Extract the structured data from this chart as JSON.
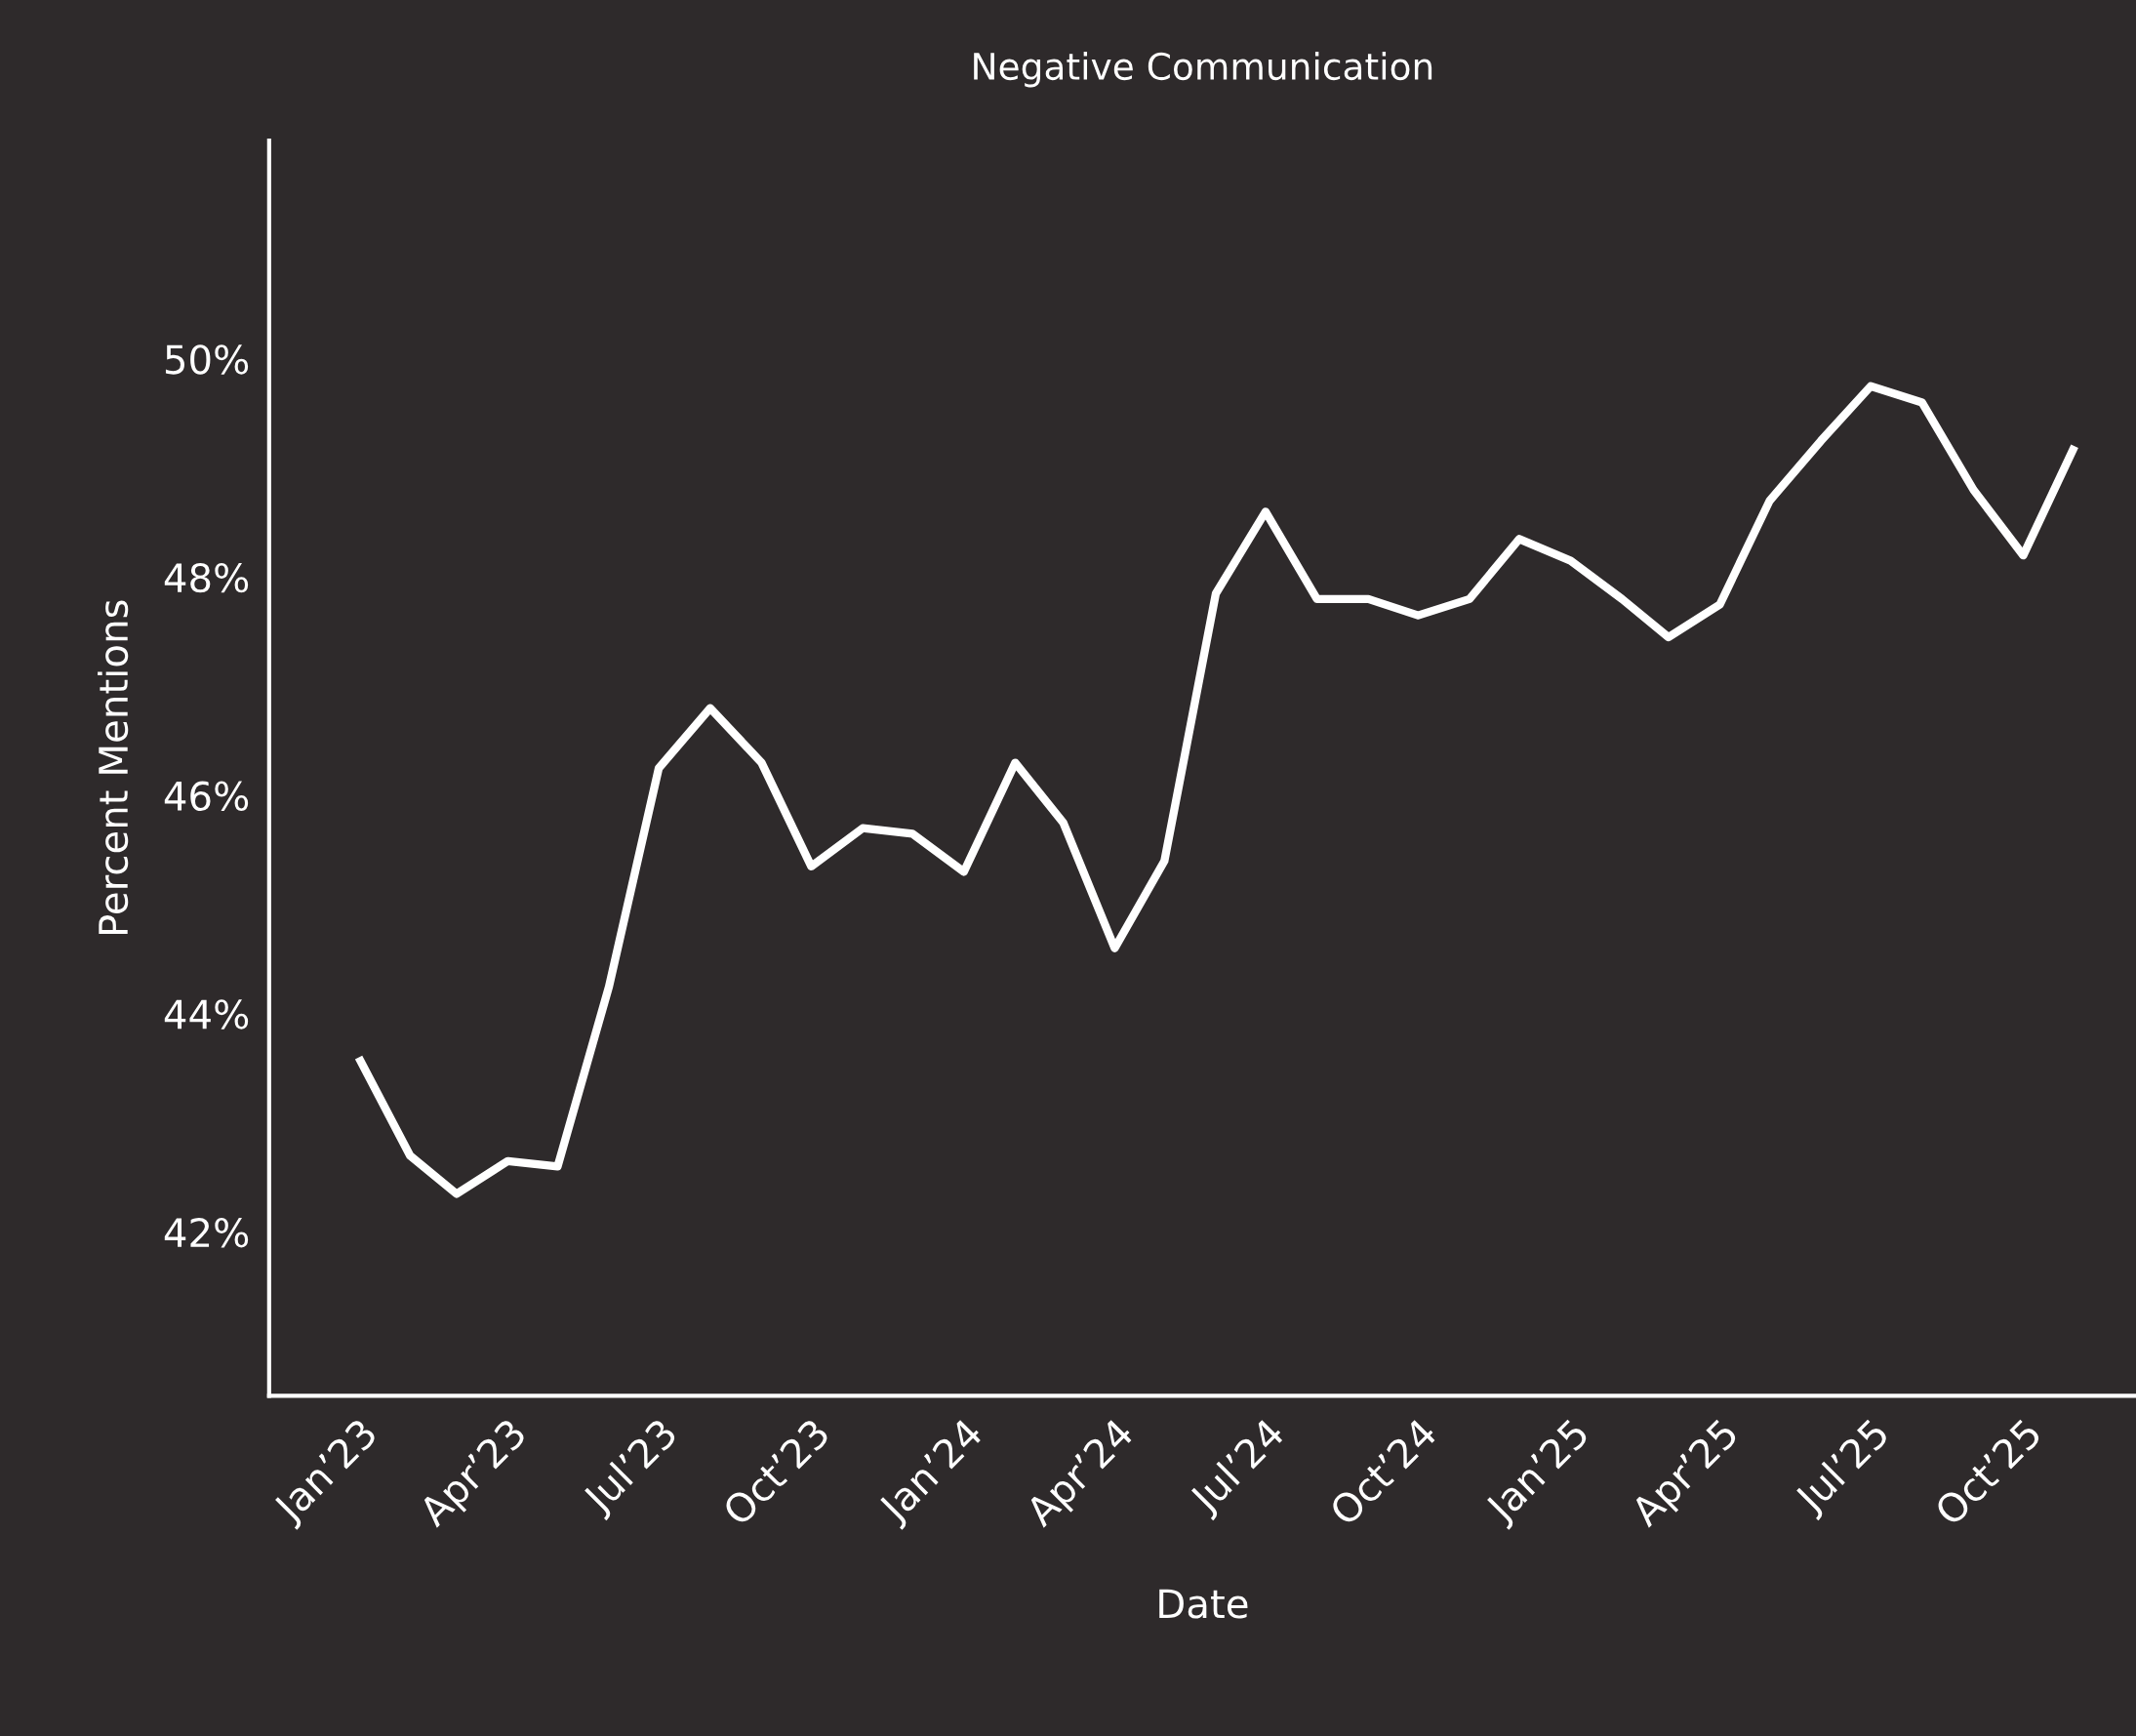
{
  "chart_data": {
    "type": "line",
    "title": "Negative Communication",
    "xlabel": "Date",
    "ylabel": "Percent Mentions",
    "x": [
      "2023-01",
      "2023-02",
      "2023-03",
      "2023-04",
      "2023-05",
      "2023-06",
      "2023-07",
      "2023-08",
      "2023-09",
      "2023-10",
      "2023-11",
      "2023-12",
      "2024-01",
      "2024-02",
      "2024-03",
      "2024-04",
      "2024-05",
      "2024-06",
      "2024-07",
      "2024-08",
      "2024-09",
      "2024-10",
      "2024-11",
      "2024-12",
      "2025-01",
      "2025-02",
      "2025-03",
      "2025-04",
      "2025-05",
      "2025-06",
      "2025-07",
      "2025-08",
      "2025-09",
      "2025-10",
      "2025-11"
    ],
    "series": [
      {
        "color": "#ffffff",
        "values": [
          43.6,
          42.7,
          42.35,
          42.65,
          42.6,
          44.25,
          46.25,
          46.8,
          46.3,
          45.35,
          45.7,
          45.65,
          45.3,
          46.3,
          45.75,
          44.6,
          45.4,
          47.85,
          48.6,
          47.8,
          47.8,
          47.65,
          47.8,
          48.35,
          48.15,
          47.8,
          47.45,
          47.75,
          48.7,
          49.25,
          49.75,
          49.6,
          48.8,
          48.2,
          49.2
        ]
      }
    ],
    "xlim": [
      "2022-11-08",
      "2025-12-08"
    ],
    "xticks": [
      {
        "value": "2023-01",
        "label": "Jan’23"
      },
      {
        "value": "2023-04",
        "label": "Apr’23"
      },
      {
        "value": "2023-07",
        "label": "Jul’23"
      },
      {
        "value": "2023-10",
        "label": "Oct’23"
      },
      {
        "value": "2024-01",
        "label": "Jan’24"
      },
      {
        "value": "2024-04",
        "label": "Apr’24"
      },
      {
        "value": "2024-07",
        "label": "Jul’24"
      },
      {
        "value": "2024-10",
        "label": "Oct’24"
      },
      {
        "value": "2025-01",
        "label": "Jan’25"
      },
      {
        "value": "2025-04",
        "label": "Apr’25"
      },
      {
        "value": "2025-07",
        "label": "Jul’25"
      },
      {
        "value": "2025-10",
        "label": "Oct’25"
      }
    ],
    "ylim": [
      40.5,
      52
    ],
    "yticks": [
      {
        "value": 42,
        "label": "42%"
      },
      {
        "value": 44,
        "label": "44%"
      },
      {
        "value": 46,
        "label": "46%"
      },
      {
        "value": 48,
        "label": "48%"
      },
      {
        "value": 50,
        "label": "50%"
      }
    ],
    "grid": false,
    "marker": "none",
    "line_style": "solid"
  }
}
